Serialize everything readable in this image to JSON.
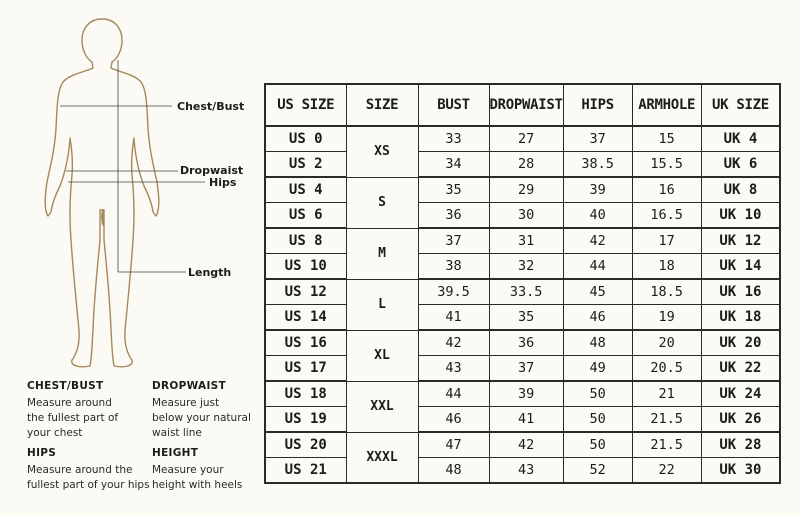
{
  "callouts": {
    "chest_bust": "Chest/Bust",
    "dropwaist": "Dropwaist",
    "hips": "Hips",
    "length": "Length"
  },
  "legend": [
    {
      "title": "CHEST/BUST",
      "text": [
        "Measure around",
        "the fullest part of",
        "your chest"
      ]
    },
    {
      "title": "DROPWAIST",
      "text": [
        "Measure just",
        "below your natural",
        "waist line"
      ]
    },
    {
      "title": "HIPS",
      "text": [
        "Measure around the",
        "fullest part of your hips"
      ]
    },
    {
      "title": "HEIGHT",
      "text": [
        "Measure your",
        "height with heels"
      ]
    }
  ],
  "table": {
    "headers": [
      "US SIZE",
      "SIZE",
      "BUST",
      "DROPWAIST",
      "HIPS",
      "ARMHOLE",
      "UK SIZE"
    ],
    "groups": [
      {
        "size": "XS",
        "rows": [
          {
            "us": "US 0",
            "bust": "33",
            "dropwaist": "27",
            "hips": "37",
            "armhole": "15",
            "uk": "UK 4"
          },
          {
            "us": "US 2",
            "bust": "34",
            "dropwaist": "28",
            "hips": "38.5",
            "armhole": "15.5",
            "uk": "UK 6"
          }
        ]
      },
      {
        "size": "S",
        "rows": [
          {
            "us": "US 4",
            "bust": "35",
            "dropwaist": "29",
            "hips": "39",
            "armhole": "16",
            "uk": "UK 8"
          },
          {
            "us": "US 6",
            "bust": "36",
            "dropwaist": "30",
            "hips": "40",
            "armhole": "16.5",
            "uk": "UK 10"
          }
        ]
      },
      {
        "size": "M",
        "rows": [
          {
            "us": "US 8",
            "bust": "37",
            "dropwaist": "31",
            "hips": "42",
            "armhole": "17",
            "uk": "UK 12"
          },
          {
            "us": "US 10",
            "bust": "38",
            "dropwaist": "32",
            "hips": "44",
            "armhole": "18",
            "uk": "UK 14"
          }
        ]
      },
      {
        "size": "L",
        "rows": [
          {
            "us": "US 12",
            "bust": "39.5",
            "dropwaist": "33.5",
            "hips": "45",
            "armhole": "18.5",
            "uk": "UK 16"
          },
          {
            "us": "US 14",
            "bust": "41",
            "dropwaist": "35",
            "hips": "46",
            "armhole": "19",
            "uk": "UK 18"
          }
        ]
      },
      {
        "size": "XL",
        "rows": [
          {
            "us": "US 16",
            "bust": "42",
            "dropwaist": "36",
            "hips": "48",
            "armhole": "20",
            "uk": "UK 20"
          },
          {
            "us": "US 17",
            "bust": "43",
            "dropwaist": "37",
            "hips": "49",
            "armhole": "20.5",
            "uk": "UK 22"
          }
        ]
      },
      {
        "size": "XXL",
        "rows": [
          {
            "us": "US 18",
            "bust": "44",
            "dropwaist": "39",
            "hips": "50",
            "armhole": "21",
            "uk": "UK 24"
          },
          {
            "us": "US 19",
            "bust": "46",
            "dropwaist": "41",
            "hips": "50",
            "armhole": "21.5",
            "uk": "UK 26"
          }
        ]
      },
      {
        "size": "XXXL",
        "rows": [
          {
            "us": "US 20",
            "bust": "47",
            "dropwaist": "42",
            "hips": "50",
            "armhole": "21.5",
            "uk": "UK 28"
          },
          {
            "us": "US 21",
            "bust": "48",
            "dropwaist": "43",
            "hips": "52",
            "armhole": "22",
            "uk": "UK 30"
          }
        ]
      }
    ]
  },
  "colors": {
    "background": "#fbfaf5",
    "figure_outline": "#a5895a",
    "text": "#1c1c1c",
    "table_border": "#2a2a2a"
  }
}
